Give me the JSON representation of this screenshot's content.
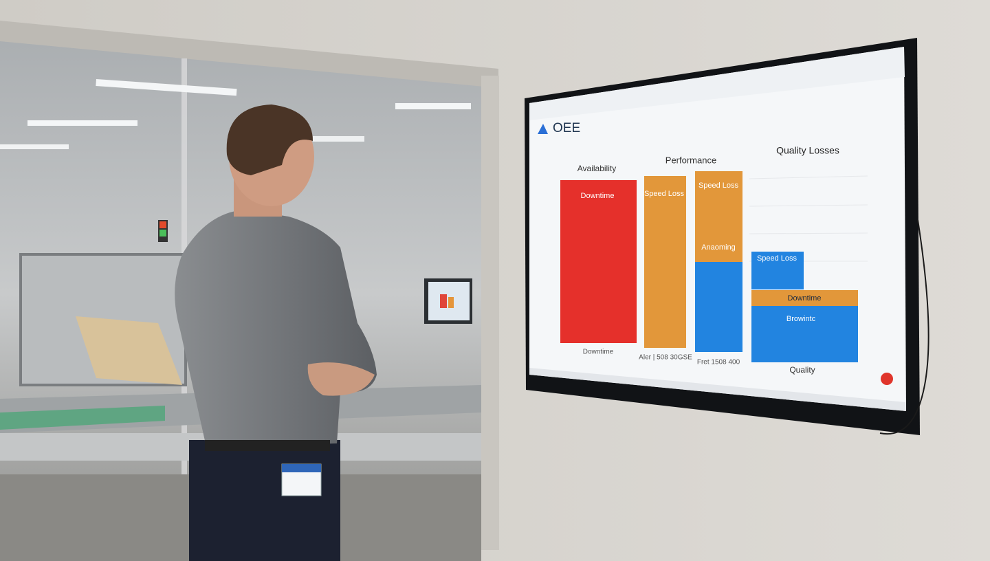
{
  "screen": {
    "title": "OEE",
    "headings": [
      "Availability",
      "Performance",
      "Quality Losses"
    ],
    "bar_labels": [
      "Downtime",
      "Speed Loss",
      "Speed Loss",
      "Anaoming",
      "Speed Loss",
      "Downtime",
      "Browintc"
    ],
    "axis_labels": [
      "Downtime",
      "Aler | 508 30GSE",
      "Fret 1508 400",
      "Quality"
    ]
  }
}
